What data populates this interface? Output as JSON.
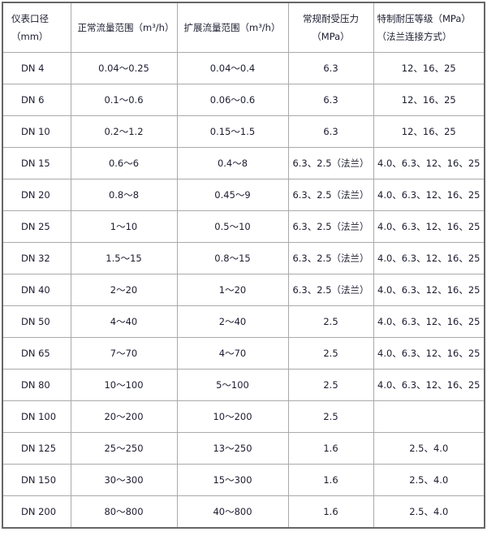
{
  "headers": [
    "仪表口径（mm）",
    "正常流量范围（m³/h）",
    "扩展流量范围（m³/h）",
    "常规耐受压力（MPa）",
    "特制耐压等级（MPa）（法兰连接方式）"
  ],
  "rows": [
    [
      "DN 4",
      "0.04～0.25",
      "0.04～0.4",
      "6.3",
      "12、16、25"
    ],
    [
      "DN 6",
      "0.1～0.6",
      "0.06～0.6",
      "6.3",
      "12、16、25"
    ],
    [
      "DN 10",
      "0.2～1.2",
      "0.15～1.5",
      "6.3",
      "12、16、25"
    ],
    [
      "DN 15",
      "0.6～6",
      "0.4～8",
      "6.3、2.5（法兰）",
      "4.0、6.3、12、16、25"
    ],
    [
      "DN 20",
      "0.8～8",
      "0.45～9",
      "6.3、2.5（法兰）",
      "4.0、6.3、12、16、25"
    ],
    [
      "DN 25",
      "1～10",
      "0.5～10",
      "6.3、2.5（法兰）",
      "4.0、6.3、12、16、25"
    ],
    [
      "DN 32",
      "1.5～15",
      "0.8～15",
      "6.3、2.5（法兰）",
      "4.0、6.3、12、16、25"
    ],
    [
      "DN 40",
      "2～20",
      "1～20",
      "6.3、2.5（法兰）",
      "4.0、6.3、12、16、25"
    ],
    [
      "DN 50",
      "4～40",
      "2～40",
      "2.5",
      "4.0、6.3、12、16、25"
    ],
    [
      "DN 65",
      "7～70",
      "4～70",
      "2.5",
      "4.0、6.3、12、16、25"
    ],
    [
      "DN 80",
      "10～100",
      "5～100",
      "2.5",
      "4.0、6.3、12、16、25"
    ],
    [
      "DN 100",
      "20～200",
      "10～200",
      "2.5",
      ""
    ],
    [
      "DN 125",
      "25～250",
      "13～250",
      "1.6",
      "2.5、4.0"
    ],
    [
      "DN 150",
      "30～300",
      "15～300",
      "1.6",
      "2.5、4.0"
    ],
    [
      "DN 200",
      "80～800",
      "40～800",
      "1.6",
      "2.5、4.0"
    ]
  ]
}
